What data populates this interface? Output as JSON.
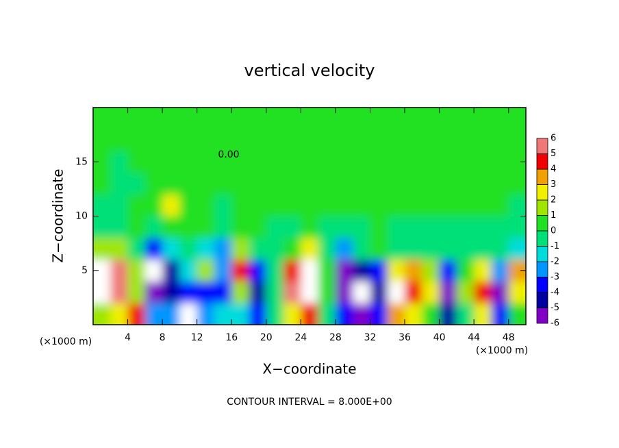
{
  "chart_data": {
    "type": "heatmap",
    "title": "vertical velocity",
    "x_label": "X−coordinate",
    "y_label": "Z−coordinate",
    "x_unit": "(×1000 m)",
    "footnote": "CONTOUR INTERVAL = 8.000E+00",
    "contour_label": "0.00",
    "xlim": [
      0,
      50
    ],
    "ylim": [
      0,
      20
    ],
    "xticks": [
      4,
      8,
      12,
      16,
      20,
      24,
      28,
      32,
      36,
      40,
      44,
      48
    ],
    "yticks": [
      5,
      10,
      15
    ],
    "x": [
      1,
      3,
      5,
      7,
      9,
      11,
      13,
      15,
      17,
      19,
      21,
      23,
      25,
      27,
      29,
      31,
      33,
      35,
      37,
      39,
      41,
      43,
      45,
      47,
      49
    ],
    "y": [
      1,
      3,
      5,
      7,
      9,
      11,
      13,
      15,
      17,
      19
    ],
    "z": [
      [
        2,
        3,
        5,
        -2,
        -2,
        -7,
        -2,
        -1,
        -1,
        -3,
        0,
        3,
        5,
        0,
        -3,
        -5,
        -3,
        4,
        3,
        1,
        -4,
        0,
        3,
        -3,
        1
      ],
      [
        7,
        6,
        2,
        -5,
        -4,
        -3,
        -3,
        -3,
        2,
        -4,
        0,
        6,
        8,
        1,
        -5,
        -8,
        -4,
        7,
        5,
        3,
        -5,
        2,
        5,
        -5,
        3
      ],
      [
        7,
        6,
        2,
        -7,
        -4,
        -1,
        2,
        -2,
        5,
        -3,
        0,
        5,
        8,
        1,
        -5,
        -4,
        -3,
        3,
        4,
        2,
        -3,
        1,
        3,
        -2,
        4
      ],
      [
        2,
        2,
        0,
        -3,
        -1,
        0,
        -1,
        -2,
        2,
        0,
        -0.5,
        1,
        3,
        0,
        -2,
        0,
        1,
        0,
        0,
        0,
        0,
        0,
        0,
        0,
        -1
      ],
      [
        0,
        0,
        0.5,
        0,
        1,
        0.5,
        0.5,
        0,
        1,
        0.5,
        0,
        0,
        0.5,
        0,
        0,
        0,
        0.5,
        0,
        0,
        0,
        0,
        0,
        0,
        0,
        0
      ],
      [
        -0.5,
        0,
        0.5,
        0.5,
        3,
        0.5,
        0.5,
        0,
        0.5,
        0.5,
        0.3,
        0.3,
        0.3,
        0.3,
        0.3,
        0.3,
        0.3,
        0.3,
        0.3,
        0.3,
        0.3,
        0.3,
        0.3,
        0.3,
        0
      ],
      [
        0.3,
        -0.5,
        -0.5,
        0.5,
        1,
        0.5,
        0.3,
        0.3,
        0.3,
        0.3,
        0.3,
        0.3,
        0.3,
        0.3,
        0.3,
        0.3,
        0.3,
        0.3,
        0.3,
        0.3,
        0.3,
        0.3,
        0.3,
        0.3,
        0.3
      ],
      [
        0.3,
        -0.5,
        0.3,
        0.3,
        0.3,
        0.3,
        0.3,
        0.3,
        0.3,
        0.3,
        0.3,
        0.3,
        0.3,
        0.3,
        0.3,
        0.3,
        0.3,
        0.3,
        0.3,
        0.3,
        0.3,
        0.3,
        0.3,
        0.3,
        0.3
      ],
      [
        0.3,
        0.3,
        0.3,
        0.3,
        0.3,
        0.3,
        0.3,
        0.3,
        0.3,
        0.3,
        0.3,
        0.3,
        0.3,
        0.3,
        0.3,
        0.3,
        0.3,
        0.3,
        0.3,
        0.3,
        0.3,
        0.3,
        0.3,
        0.3,
        0.3
      ],
      [
        0.3,
        0.3,
        0.3,
        0.3,
        0.3,
        0.3,
        0.3,
        0.3,
        0.3,
        0.3,
        0.3,
        0.3,
        0.3,
        0.3,
        0.3,
        0.3,
        0.3,
        0.3,
        0.3,
        0.3,
        0.3,
        0.3,
        0.3,
        0.3,
        0.3
      ]
    ],
    "levels": [
      -6,
      -5,
      -4,
      -3,
      -2,
      -1,
      0,
      1,
      2,
      3,
      4,
      5,
      6
    ],
    "colors": [
      "#8000c8",
      "#0000a0",
      "#0000ff",
      "#0096ff",
      "#00dcdc",
      "#00e078",
      "#22e022",
      "#a0e600",
      "#f0f000",
      "#f0a000",
      "#f00000",
      "#f07878"
    ],
    "out_of_range_color": "#ffffff"
  }
}
